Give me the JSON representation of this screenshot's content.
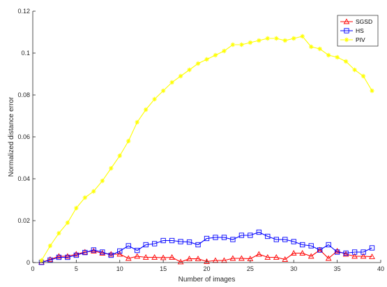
{
  "chart_data": {
    "type": "line",
    "title": "",
    "xlabel": "Number of images",
    "ylabel": "Normalized distance error",
    "xlim": [
      0,
      40
    ],
    "ylim": [
      0,
      0.12
    ],
    "xticks": [
      0,
      5,
      10,
      15,
      20,
      25,
      30,
      35,
      40
    ],
    "yticks": [
      0,
      0.02,
      0.04,
      0.06,
      0.08,
      0.1,
      0.12
    ],
    "xtick_labels": [
      "0",
      "5",
      "10",
      "15",
      "20",
      "25",
      "30",
      "35",
      "40"
    ],
    "ytick_labels": [
      "0",
      "0.02",
      "0.04",
      "0.06",
      "0.08",
      "0.1",
      "0.12"
    ],
    "grid": false,
    "legend_position": "top-right",
    "x": [
      1,
      2,
      3,
      4,
      5,
      6,
      7,
      8,
      9,
      10,
      11,
      12,
      13,
      14,
      15,
      16,
      17,
      18,
      19,
      20,
      21,
      22,
      23,
      24,
      25,
      26,
      27,
      28,
      29,
      30,
      31,
      32,
      33,
      34,
      35,
      36,
      37,
      38,
      39
    ],
    "series": [
      {
        "name": "SGSD",
        "color": "#ff0000",
        "marker": "triangle",
        "values": [
          0.0001,
          0.0015,
          0.003,
          0.003,
          0.004,
          0.005,
          0.0055,
          0.0045,
          0.004,
          0.004,
          0.002,
          0.003,
          0.0025,
          0.0025,
          0.0023,
          0.0025,
          0.0003,
          0.0018,
          0.0018,
          0.0005,
          0.001,
          0.001,
          0.002,
          0.002,
          0.0018,
          0.004,
          0.0025,
          0.0025,
          0.0015,
          0.0045,
          0.0045,
          0.003,
          0.006,
          0.002,
          0.0055,
          0.004,
          0.003,
          0.003,
          0.0028
        ]
      },
      {
        "name": "HS",
        "color": "#0000ff",
        "marker": "square",
        "values": [
          0.0001,
          0.0012,
          0.0025,
          0.0025,
          0.0035,
          0.0048,
          0.006,
          0.005,
          0.0035,
          0.0055,
          0.008,
          0.0058,
          0.0085,
          0.009,
          0.0105,
          0.0105,
          0.01,
          0.0098,
          0.0085,
          0.0115,
          0.012,
          0.012,
          0.011,
          0.013,
          0.013,
          0.0145,
          0.0125,
          0.011,
          0.011,
          0.01,
          0.0085,
          0.008,
          0.006,
          0.0085,
          0.005,
          0.0045,
          0.005,
          0.005,
          0.007
        ]
      },
      {
        "name": "PIV",
        "color": "#ffff00",
        "marker": "star",
        "values": [
          0.001,
          0.008,
          0.014,
          0.019,
          0.026,
          0.031,
          0.034,
          0.039,
          0.045,
          0.051,
          0.058,
          0.067,
          0.073,
          0.078,
          0.082,
          0.086,
          0.089,
          0.092,
          0.095,
          0.097,
          0.099,
          0.101,
          0.104,
          0.104,
          0.105,
          0.106,
          0.107,
          0.107,
          0.106,
          0.107,
          0.108,
          0.103,
          0.102,
          0.099,
          0.098,
          0.096,
          0.092,
          0.089,
          0.082
        ]
      }
    ]
  }
}
